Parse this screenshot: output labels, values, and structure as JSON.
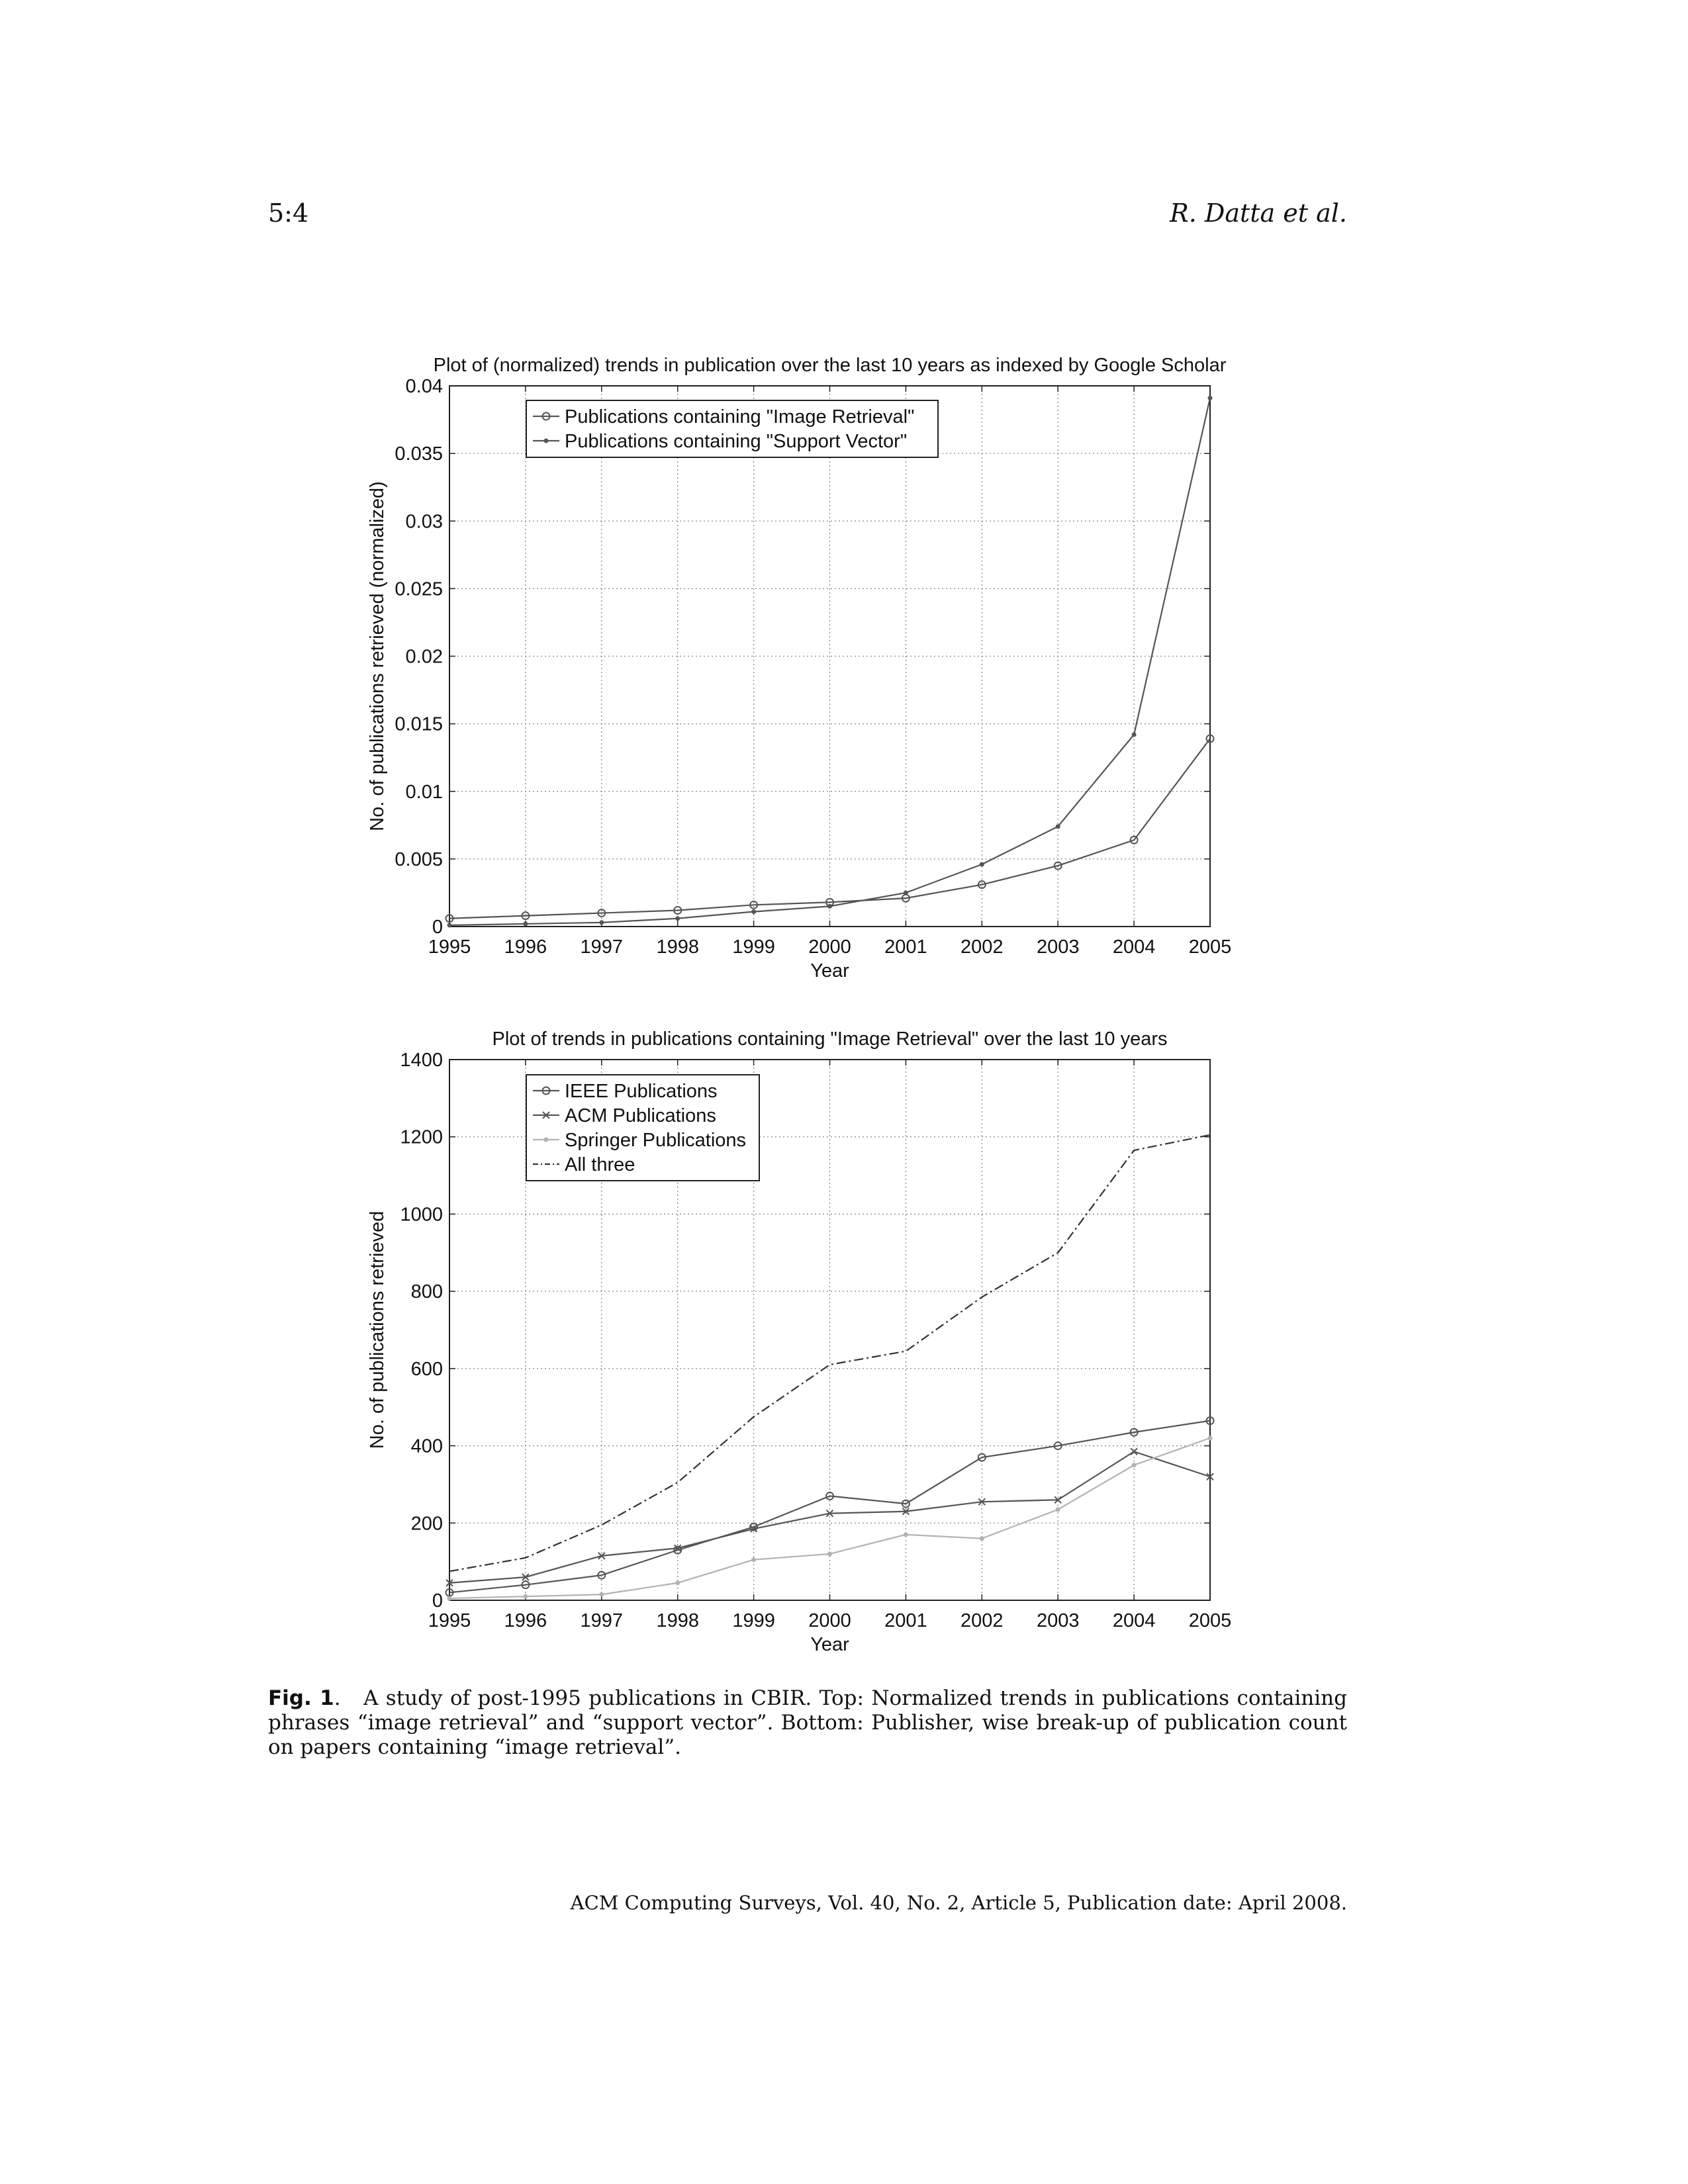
{
  "header": {
    "page_number": "5:4",
    "authors": "R. Datta et al."
  },
  "figure": {
    "label": "Fig. 1",
    "caption": "A study of post-1995 publications in CBIR. Top: Normalized trends in publications containing phrases “image retrieval” and “support vector”. Bottom: Publisher, wise break-up of publication count on papers containing “image retrieval”."
  },
  "footer": {
    "journal": "ACM Computing Surveys, Vol. 40, No. 2, Article 5, Publication date: April 2008."
  },
  "chart_data": [
    {
      "type": "line",
      "title": "Plot of (normalized) trends in publication over the last 10 years as indexed by Google Scholar",
      "xlabel": "Year",
      "ylabel": "No. of publications retrieved (normalized)",
      "x": [
        1995,
        1996,
        1997,
        1998,
        1999,
        2000,
        2001,
        2002,
        2003,
        2004,
        2005
      ],
      "xlim": [
        1995,
        2005
      ],
      "ylim": [
        0,
        0.04
      ],
      "yticks": [
        "0",
        "0.005",
        "0.01",
        "0.015",
        "0.02",
        "0.025",
        "0.03",
        "0.035",
        "0.04"
      ],
      "grid": true,
      "legend_position": "top-left",
      "series": [
        {
          "name": "Publications containing \"Image Retrieval\"",
          "marker": "circle",
          "color": "#555555",
          "values": [
            0.0006,
            0.0008,
            0.001,
            0.0012,
            0.0016,
            0.0018,
            0.0021,
            0.0031,
            0.0045,
            0.0064,
            0.0139
          ]
        },
        {
          "name": "Publications containing \"Support Vector\"",
          "marker": "dot",
          "color": "#555555",
          "values": [
            0.0001,
            0.0002,
            0.0003,
            0.0006,
            0.0011,
            0.0015,
            0.0025,
            0.0046,
            0.0074,
            0.0142,
            0.0391
          ]
        }
      ]
    },
    {
      "type": "line",
      "title": "Plot of trends in publications containing \"Image Retrieval\" over the last 10 years",
      "xlabel": "Year",
      "ylabel": "No. of publications retrieved",
      "x": [
        1995,
        1996,
        1997,
        1998,
        1999,
        2000,
        2001,
        2002,
        2003,
        2004,
        2005
      ],
      "xlim": [
        1995,
        2005
      ],
      "ylim": [
        0,
        1400
      ],
      "yticks": [
        "0",
        "200",
        "400",
        "600",
        "800",
        "1000",
        "1200",
        "1400"
      ],
      "grid": true,
      "legend_position": "top-left",
      "series": [
        {
          "name": "IEEE Publications",
          "marker": "circle",
          "dash": "",
          "color": "#555555",
          "values": [
            20,
            40,
            65,
            130,
            190,
            270,
            250,
            370,
            400,
            435,
            465
          ]
        },
        {
          "name": "ACM Publications",
          "marker": "x",
          "dash": "",
          "color": "#555555",
          "values": [
            45,
            60,
            115,
            135,
            185,
            225,
            230,
            255,
            260,
            385,
            320
          ]
        },
        {
          "name": "Springer Publications",
          "marker": "dot",
          "dash": "",
          "color": "#b3b3b3",
          "values": [
            5,
            10,
            15,
            45,
            105,
            120,
            170,
            160,
            235,
            350,
            420
          ]
        },
        {
          "name": "All three",
          "marker": "none",
          "dash": "14,5,3,5",
          "color": "#333333",
          "values": [
            75,
            110,
            195,
            305,
            475,
            610,
            645,
            785,
            900,
            1165,
            1205
          ]
        }
      ]
    }
  ]
}
